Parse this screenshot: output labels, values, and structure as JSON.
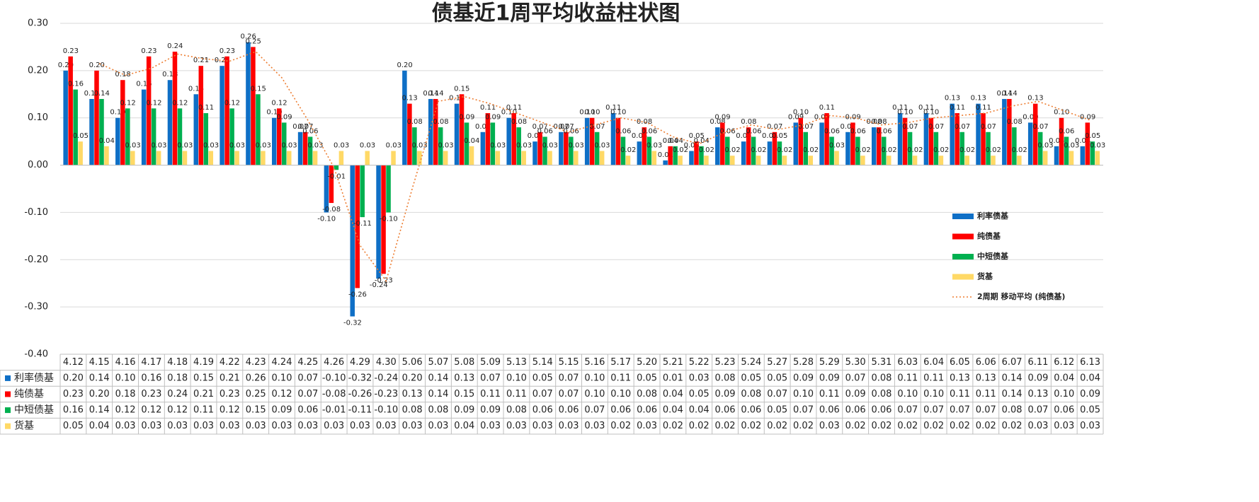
{
  "chart_data": {
    "type": "bar",
    "title": "债基近1周平均收益柱状图",
    "categories": [
      "4.12",
      "4.15",
      "4.16",
      "4.17",
      "4.18",
      "4.19",
      "4.22",
      "4.23",
      "4.24",
      "4.25",
      "4.26",
      "4.29",
      "4.30",
      "5.06",
      "5.07",
      "5.08",
      "5.09",
      "5.13",
      "5.14",
      "5.15",
      "5.16",
      "5.17",
      "5.20",
      "5.21",
      "5.22",
      "5.23",
      "5.24",
      "5.27",
      "5.28",
      "5.29",
      "5.30",
      "5.31",
      "6.03",
      "6.04",
      "6.05",
      "6.06",
      "6.07",
      "6.11",
      "6.12",
      "6.13"
    ],
    "ylim": [
      -0.4,
      0.3
    ],
    "yticks": [
      {
        "value": -0.4,
        "label": "-0.40"
      },
      {
        "value": -0.3,
        "label": "-0.30"
      },
      {
        "value": -0.2,
        "label": "-0.20"
      },
      {
        "value": -0.1,
        "label": "-0.10"
      },
      {
        "value": 0,
        "label": "0.00"
      },
      {
        "value": 0.1,
        "label": "0.10"
      },
      {
        "value": 0.2,
        "label": "0.20"
      },
      {
        "value": 0.3,
        "label": "0.30"
      }
    ],
    "grid": true,
    "legend": "right",
    "data_table": true,
    "series": [
      {
        "name": "利率债基",
        "color": "#0f6fc6",
        "values": [
          0.2,
          0.14,
          0.1,
          0.16,
          0.18,
          0.15,
          0.21,
          0.26,
          0.1,
          0.07,
          -0.1,
          -0.32,
          -0.24,
          0.2,
          0.14,
          0.13,
          0.07,
          0.1,
          0.05,
          0.07,
          0.1,
          0.11,
          0.05,
          0.01,
          0.03,
          0.08,
          0.05,
          0.05,
          0.09,
          0.09,
          0.07,
          0.08,
          0.11,
          0.11,
          0.13,
          0.13,
          0.14,
          0.09,
          0.04,
          0.04
        ],
        "value_labels": [
          "0.20",
          "0.14",
          "0.10",
          "0.16",
          "0.18",
          "0.15",
          "0.21",
          "0.26",
          "0.10",
          "0.07",
          "-0.10",
          "-0.32",
          "-0.24",
          "0.20",
          "0.14",
          "0.13",
          "0.07",
          "0.10",
          "0.05",
          "0.07",
          "0.10",
          "0.11",
          "0.05",
          "0.01",
          "0.03",
          "0.08",
          "0.05",
          "0.05",
          "0.09",
          "0.09",
          "0.07",
          "0.08",
          "0.11",
          "0.11",
          "0.13",
          "0.13",
          "0.14",
          "0.09",
          "0.04",
          "0.04"
        ]
      },
      {
        "name": "纯债基",
        "color": "#ff0000",
        "values": [
          0.23,
          0.2,
          0.18,
          0.23,
          0.24,
          0.21,
          0.23,
          0.25,
          0.12,
          0.07,
          -0.08,
          -0.26,
          -0.23,
          0.13,
          0.14,
          0.15,
          0.11,
          0.11,
          0.07,
          0.07,
          0.1,
          0.1,
          0.08,
          0.04,
          0.05,
          0.09,
          0.08,
          0.07,
          0.1,
          0.11,
          0.09,
          0.08,
          0.1,
          0.1,
          0.11,
          0.11,
          0.14,
          0.13,
          0.1,
          0.09
        ],
        "value_labels": [
          "0.23",
          "0.20",
          "0.18",
          "0.23",
          "0.24",
          "0.21",
          "0.23",
          "0.25",
          "0.12",
          "0.07",
          "-0.08",
          "-0.26",
          "-0.23",
          "0.13",
          "0.14",
          "0.15",
          "0.11",
          "0.11",
          "0.07",
          "0.07",
          "0.10",
          "0.10",
          "0.08",
          "0.04",
          "0.05",
          "0.09",
          "0.08",
          "0.07",
          "0.10",
          "0.11",
          "0.09",
          "0.08",
          "0.10",
          "0.10",
          "0.11",
          "0.11",
          "0.14",
          "0.13",
          "0.10",
          "0.09"
        ]
      },
      {
        "name": "中短债基",
        "color": "#00b050",
        "values": [
          0.16,
          0.14,
          0.12,
          0.12,
          0.12,
          0.11,
          0.12,
          0.15,
          0.09,
          0.06,
          -0.01,
          -0.11,
          -0.1,
          0.08,
          0.08,
          0.09,
          0.09,
          0.08,
          0.06,
          0.06,
          0.07,
          0.06,
          0.06,
          0.04,
          0.04,
          0.06,
          0.06,
          0.05,
          0.07,
          0.06,
          0.06,
          0.06,
          0.07,
          0.07,
          0.07,
          0.07,
          0.08,
          0.07,
          0.06,
          0.05
        ],
        "value_labels": [
          "0.16",
          "0.14",
          "0.12",
          "0.12",
          "0.12",
          "0.11",
          "0.12",
          "0.15",
          "0.09",
          "0.06",
          "-0.01",
          "-0.11",
          "-0.10",
          "0.08",
          "0.08",
          "0.09",
          "0.09",
          "0.08",
          "0.06",
          "0.06",
          "0.07",
          "0.06",
          "0.06",
          "0.04",
          "0.04",
          "0.06",
          "0.06",
          "0.05",
          "0.07",
          "0.06",
          "0.06",
          "0.06",
          "0.07",
          "0.07",
          "0.07",
          "0.07",
          "0.08",
          "0.07",
          "0.06",
          "0.05"
        ]
      },
      {
        "name": "货基",
        "color": "#ffd966",
        "values": [
          0.05,
          0.04,
          0.03,
          0.03,
          0.03,
          0.03,
          0.03,
          0.03,
          0.03,
          0.03,
          0.03,
          0.03,
          0.03,
          0.03,
          0.03,
          0.04,
          0.03,
          0.03,
          0.03,
          0.03,
          0.03,
          0.02,
          0.03,
          0.02,
          0.02,
          0.02,
          0.02,
          0.02,
          0.02,
          0.03,
          0.02,
          0.02,
          0.02,
          0.02,
          0.02,
          0.02,
          0.02,
          0.03,
          0.03,
          0.03
        ],
        "value_labels": [
          "0.05",
          "0.04",
          "0.03",
          "0.03",
          "0.03",
          "0.03",
          "0.03",
          "0.03",
          "0.03",
          "0.03",
          "0.03",
          "0.03",
          "0.03",
          "0.03",
          "0.03",
          "0.04",
          "0.03",
          "0.03",
          "0.03",
          "0.03",
          "0.03",
          "0.02",
          "0.03",
          "0.02",
          "0.02",
          "0.02",
          "0.02",
          "0.02",
          "0.02",
          "0.03",
          "0.02",
          "0.02",
          "0.02",
          "0.02",
          "0.02",
          "0.02",
          "0.02",
          "0.03",
          "0.03",
          "0.03"
        ]
      },
      {
        "name": "2周期 移动平均 (纯债基)",
        "color": "#ed7d31",
        "type": "line",
        "dash": true,
        "values": [
          null,
          0.215,
          0.19,
          0.205,
          0.235,
          0.225,
          0.22,
          0.24,
          0.185,
          0.095,
          -0.005,
          -0.17,
          -0.245,
          -0.05,
          0.135,
          0.145,
          0.13,
          0.11,
          0.09,
          0.07,
          0.085,
          0.1,
          0.09,
          0.06,
          0.045,
          0.07,
          0.085,
          0.075,
          0.085,
          0.105,
          0.1,
          0.085,
          0.09,
          0.1,
          0.105,
          0.11,
          0.125,
          0.135,
          0.115,
          0.095
        ]
      }
    ]
  }
}
